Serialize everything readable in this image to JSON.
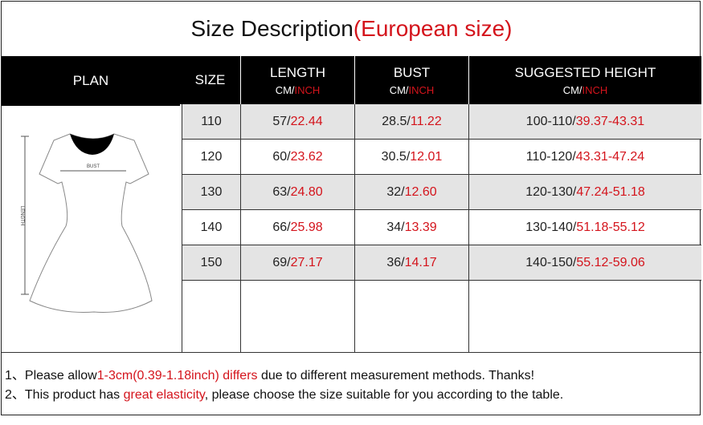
{
  "title": {
    "main": "Size Description",
    "accent": "(European size)"
  },
  "header": {
    "plan": "PLAN",
    "size": "SIZE",
    "columns": [
      {
        "label": "LENGTH",
        "unit_cm": "CM/",
        "unit_inch": "INCH"
      },
      {
        "label": "BUST",
        "unit_cm": "CM/",
        "unit_inch": "INCH"
      },
      {
        "label": "SUGGESTED HEIGHT",
        "unit_cm": "CM/",
        "unit_inch": "INCH"
      }
    ]
  },
  "diagram": {
    "bust_label": "BUST",
    "length_label": "LENGTH"
  },
  "rows": [
    {
      "size": "110",
      "length_cm": "57/",
      "length_in": "22.44",
      "bust_cm": "28.5/",
      "bust_in": "11.22",
      "height_cm": "100-110/",
      "height_in": "39.37-43.31"
    },
    {
      "size": "120",
      "length_cm": "60/",
      "length_in": "23.62",
      "bust_cm": "30.5/",
      "bust_in": "12.01",
      "height_cm": "110-120/",
      "height_in": "43.31-47.24"
    },
    {
      "size": "130",
      "length_cm": "63/",
      "length_in": "24.80",
      "bust_cm": "32/",
      "bust_in": "12.60",
      "height_cm": "120-130/",
      "height_in": "47.24-51.18"
    },
    {
      "size": "140",
      "length_cm": "66/",
      "length_in": "25.98",
      "bust_cm": "34/",
      "bust_in": "13.39",
      "height_cm": "130-140/",
      "height_in": "51.18-55.12"
    },
    {
      "size": "150",
      "length_cm": "69/",
      "length_in": "27.17",
      "bust_cm": "36/",
      "bust_in": "14.17",
      "height_cm": "140-150/",
      "height_in": "55.12-59.06"
    }
  ],
  "notes": [
    {
      "prefix": "1、Please allow",
      "accent": "1-3cm(0.39-1.18inch) differs",
      "suffix": " due to different measurement methods. Thanks!"
    },
    {
      "prefix": "2、This product has ",
      "accent": "great elasticity",
      "suffix": ", please choose the size suitable for you according to the table."
    }
  ],
  "colors": {
    "accent": "#d4141c",
    "header_bg": "#000000",
    "row_alt": "#e4e4e4"
  }
}
